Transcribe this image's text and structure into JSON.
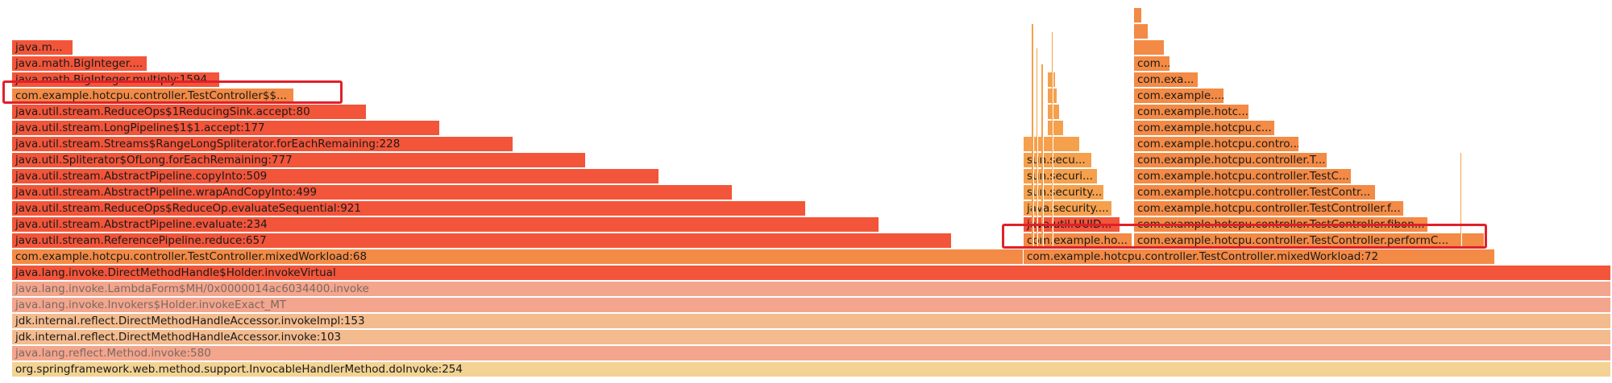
{
  "colors": {
    "red": "#f2553a",
    "red2": "#f4633c",
    "orange": "#f38a45",
    "orange2": "#f5a04c",
    "salmon": "#f4a58d",
    "tan": "#f3bb8e",
    "peach": "#f7c6a0",
    "wheat": "#f3d393",
    "highlight": "#e0202a"
  },
  "frames": [
    {
      "label": "org.springframework.web.method.support.InvocableHandlerMethod.doInvoke:254",
      "color": "wheat",
      "dim": false
    },
    {
      "label": "java.lang.reflect.Method.invoke:580",
      "color": "salmon",
      "dim": true
    },
    {
      "label": "jdk.internal.reflect.DirectMethodHandleAccessor.invoke:103",
      "color": "tan",
      "dim": false
    },
    {
      "label": "jdk.internal.reflect.DirectMethodHandleAccessor.invokeImpl:153",
      "color": "tan",
      "dim": false
    },
    {
      "label": "java.lang.invoke.Invokers$Holder.invokeExact_MT",
      "color": "salmon",
      "dim": true
    },
    {
      "label": "java.lang.invoke.LambdaForm$MH/0x0000014ac6034400.invoke",
      "color": "salmon",
      "dim": true
    },
    {
      "label": "java.lang.invoke.DirectMethodHandle$Holder.invokeVirtual",
      "color": "red",
      "dim": false
    },
    {
      "label": "com.example.hotcpu.controller.TestController.mixedWorkload:68",
      "color": "orange",
      "dim": false
    },
    {
      "label": "java.util.stream.ReferencePipeline.reduce:657",
      "color": "red",
      "dim": false
    },
    {
      "label": "java.util.stream.AbstractPipeline.evaluate:234",
      "color": "red",
      "dim": false
    },
    {
      "label": "java.util.stream.ReduceOps$ReduceOp.evaluateSequential:921",
      "color": "red",
      "dim": false
    },
    {
      "label": "java.util.stream.AbstractPipeline.wrapAndCopyInto:499",
      "color": "red",
      "dim": false
    },
    {
      "label": "java.util.stream.AbstractPipeline.copyInto:509",
      "color": "red",
      "dim": false
    },
    {
      "label": "java.util.Spliterator$OfLong.forEachRemaining:777",
      "color": "red",
      "dim": false
    },
    {
      "label": "java.util.stream.Streams$RangeLongSpliterator.forEachRemaining:228",
      "color": "red",
      "dim": false
    },
    {
      "label": "java.util.stream.LongPipeline$1$1.accept:177",
      "color": "red",
      "dim": false
    },
    {
      "label": "java.util.stream.ReduceOps$1ReducingSink.accept:80",
      "color": "red",
      "dim": false
    },
    {
      "label": "com.example.hotcpu.controller.TestController$$...",
      "color": "orange",
      "dim": false
    },
    {
      "label": "java.math.BigInteger.multiply:1594",
      "color": "red",
      "dim": false
    },
    {
      "label": "java.math.BigInteger....",
      "color": "red",
      "dim": false
    },
    {
      "label": "java.m...",
      "color": "red",
      "dim": false
    },
    {
      "label": "com.example.hotcpu.controller.TestController.mixedWorkload:72",
      "color": "orange",
      "dim": false
    },
    {
      "label": "com.example.ho...",
      "color": "orange",
      "dim": false
    },
    {
      "label": "java.util.UUID...",
      "color": "red",
      "dim": false
    },
    {
      "label": "java.security....",
      "color": "orange2",
      "dim": false
    },
    {
      "label": "sun.security...",
      "color": "orange2",
      "dim": false
    },
    {
      "label": "sun.securi...",
      "color": "orange2",
      "dim": false
    },
    {
      "label": "sun.secu...",
      "color": "orange2",
      "dim": false
    },
    {
      "label": "",
      "color": "orange2",
      "dim": false
    },
    {
      "label": "",
      "color": "orange2",
      "dim": false
    },
    {
      "label": "",
      "color": "orange2",
      "dim": false
    },
    {
      "label": "",
      "color": "orange2",
      "dim": false
    },
    {
      "label": "",
      "color": "orange2",
      "dim": false
    },
    {
      "label": "com.example.hotcpu.controller.TestController.performC...",
      "color": "orange",
      "dim": false
    },
    {
      "label": "com.example.hotcpu.controller.TestController.fibon...",
      "color": "orange",
      "dim": false
    },
    {
      "label": "com.example.hotcpu.controller.TestController.f...",
      "color": "orange",
      "dim": false
    },
    {
      "label": "com.example.hotcpu.controller.TestContr...",
      "color": "orange",
      "dim": false
    },
    {
      "label": "com.example.hotcpu.controller.TestC...",
      "color": "orange",
      "dim": false
    },
    {
      "label": "com.example.hotcpu.controller.T...",
      "color": "orange",
      "dim": false
    },
    {
      "label": "com.example.hotcpu.contro...",
      "color": "orange",
      "dim": false
    },
    {
      "label": "com.example.hotcpu.c...",
      "color": "orange",
      "dim": false
    },
    {
      "label": "com.example.hotc...",
      "color": "orange",
      "dim": false
    },
    {
      "label": "com.example....",
      "color": "orange",
      "dim": false
    },
    {
      "label": "com.exa...",
      "color": "orange",
      "dim": false
    },
    {
      "label": "com....",
      "color": "orange",
      "dim": false
    },
    {
      "label": "",
      "color": "orange",
      "dim": false
    },
    {
      "label": "",
      "color": "orange",
      "dim": false
    },
    {
      "label": "",
      "color": "orange",
      "dim": false
    },
    {
      "label": "",
      "color": "orange",
      "dim": false
    }
  ],
  "highlights": [
    "highlight-testcontroller-lambda",
    "highlight-performc-row"
  ]
}
